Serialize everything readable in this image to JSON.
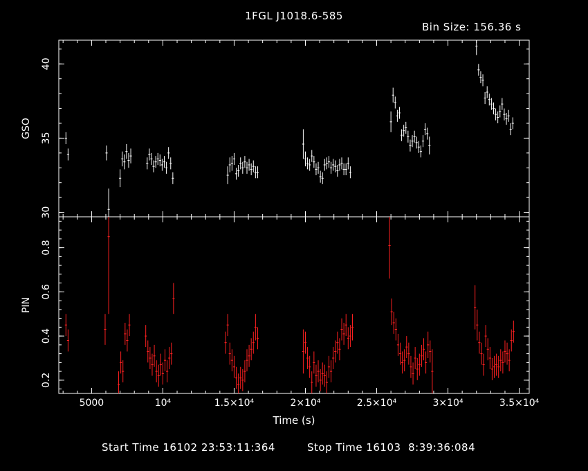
{
  "title": "1FGL J1018.6-585",
  "bin_size_label": "Bin Size: 156.36 s",
  "footer": {
    "start_label": "Start Time 16102 23:53:11:364",
    "stop_label": "Stop Time 16103  8:39:36:084"
  },
  "colors": {
    "background": "#000000",
    "gso": "#ffffff",
    "pin": "#ff2020",
    "axes": "#ffffff"
  },
  "chart_data": [
    {
      "type": "scatter",
      "panel": "top",
      "ylabel": "GSO",
      "xlabel": "",
      "xlim": [
        2700,
        35700
      ],
      "ylim": [
        29.7,
        41.6
      ],
      "yticks": [
        {
          "v": 30,
          "label": "30"
        },
        {
          "v": 35,
          "label": "35"
        },
        {
          "v": 40,
          "label": "40"
        }
      ],
      "series": [
        {
          "x": [
            3200,
            3350,
            6050,
            6200,
            7000,
            7150,
            7300,
            7450,
            7600,
            7750,
            8900,
            9050,
            9200,
            9350,
            9500,
            9650,
            9800,
            9950,
            10100,
            10250,
            10400,
            10550,
            10700,
            14550,
            14700,
            14850,
            15000,
            15150,
            15300,
            15450,
            15600,
            15750,
            15900,
            16050,
            16200,
            16350,
            16500,
            16650,
            19850,
            20000,
            20150,
            20300,
            20450,
            20600,
            20750,
            20900,
            21050,
            21200,
            21350,
            21500,
            21650,
            21800,
            21950,
            22100,
            22250,
            22400,
            22550,
            22700,
            22850,
            23000,
            23150,
            26000,
            26150,
            26300,
            26450,
            26600,
            26750,
            26900,
            27050,
            27200,
            27350,
            27500,
            27650,
            27800,
            27950,
            28100,
            28250,
            28400,
            28550,
            28700,
            32000,
            32150,
            32300,
            32450,
            32600,
            32750,
            32900,
            33050,
            33200,
            33350,
            33500,
            33650,
            33800,
            33950,
            34100,
            34250,
            34400,
            34550
          ],
          "y": [
            35.0,
            33.9,
            34.0,
            30.2,
            32.3,
            33.6,
            33.4,
            34.1,
            33.5,
            33.8,
            33.3,
            33.9,
            33.6,
            33.1,
            33.4,
            33.6,
            33.5,
            33.2,
            33.4,
            33.0,
            34.0,
            33.3,
            32.3,
            32.5,
            33.2,
            33.3,
            33.6,
            32.6,
            32.8,
            33.3,
            33.0,
            33.4,
            33.0,
            33.2,
            32.9,
            33.1,
            32.7,
            32.7,
            34.6,
            33.6,
            33.3,
            33.2,
            33.8,
            33.4,
            32.9,
            33.0,
            32.4,
            32.3,
            33.2,
            33.3,
            33.4,
            33.0,
            33.2,
            33.1,
            32.8,
            33.2,
            33.3,
            32.9,
            32.9,
            33.3,
            32.7,
            36.1,
            37.9,
            37.4,
            36.5,
            36.7,
            35.2,
            35.5,
            35.7,
            35.1,
            34.5,
            34.8,
            35.1,
            34.7,
            34.4,
            34.1,
            34.8,
            35.6,
            35.3,
            34.5,
            41.2,
            39.6,
            39.1,
            38.9,
            37.7,
            38.1,
            37.6,
            37.3,
            37.0,
            36.6,
            36.4,
            36.8,
            37.3,
            36.6,
            36.3,
            36.5,
            35.6,
            36.0
          ],
          "yerr": [
            0.4,
            0.4,
            0.5,
            1.4,
            0.6,
            0.5,
            0.5,
            0.5,
            0.5,
            0.5,
            0.4,
            0.4,
            0.4,
            0.4,
            0.4,
            0.4,
            0.4,
            0.4,
            0.4,
            0.4,
            0.4,
            0.4,
            0.4,
            0.6,
            0.5,
            0.5,
            0.4,
            0.4,
            0.4,
            0.4,
            0.4,
            0.4,
            0.4,
            0.4,
            0.4,
            0.4,
            0.4,
            0.4,
            1.0,
            0.5,
            0.4,
            0.4,
            0.4,
            0.4,
            0.4,
            0.4,
            0.4,
            0.4,
            0.4,
            0.4,
            0.4,
            0.4,
            0.4,
            0.4,
            0.4,
            0.4,
            0.4,
            0.4,
            0.4,
            0.4,
            0.4,
            0.7,
            0.5,
            0.4,
            0.4,
            0.4,
            0.4,
            0.4,
            0.4,
            0.4,
            0.4,
            0.4,
            0.4,
            0.4,
            0.4,
            0.4,
            0.4,
            0.4,
            0.4,
            0.6,
            0.6,
            0.4,
            0.4,
            0.4,
            0.4,
            0.4,
            0.4,
            0.4,
            0.4,
            0.4,
            0.4,
            0.4,
            0.4,
            0.4,
            0.4,
            0.4,
            0.4,
            0.4
          ]
        }
      ]
    },
    {
      "type": "scatter",
      "panel": "bottom",
      "ylabel": "PIN",
      "xlabel": "Time (s)",
      "xlim": [
        2700,
        35700
      ],
      "ylim": [
        0.14,
        0.94
      ],
      "yticks": [
        {
          "v": 0.2,
          "label": "0.2"
        },
        {
          "v": 0.4,
          "label": "0.4"
        },
        {
          "v": 0.6,
          "label": "0.6"
        },
        {
          "v": 0.8,
          "label": "0.8"
        }
      ],
      "xticks": [
        {
          "v": 5000,
          "label": "5000"
        },
        {
          "v": 10000,
          "label": "10⁴"
        },
        {
          "v": 15000,
          "label": "1.5×10⁴"
        },
        {
          "v": 20000,
          "label": "2×10⁴"
        },
        {
          "v": 25000,
          "label": "2.5×10⁴"
        },
        {
          "v": 30000,
          "label": "3×10⁴"
        },
        {
          "v": 35000,
          "label": "3.5×10⁴"
        }
      ],
      "series": [
        {
          "x": [
            3200,
            3350,
            5950,
            6200,
            6900,
            7050,
            7200,
            7350,
            7500,
            7650,
            8800,
            8950,
            9100,
            9250,
            9400,
            9550,
            9700,
            9850,
            10000,
            10150,
            10300,
            10450,
            10600,
            10750,
            14400,
            14550,
            14700,
            14850,
            15000,
            15150,
            15300,
            15450,
            15600,
            15750,
            15900,
            16050,
            16200,
            16350,
            16500,
            16650,
            19850,
            20000,
            20150,
            20300,
            20450,
            20600,
            20750,
            20900,
            21050,
            21200,
            21350,
            21500,
            21650,
            21800,
            21950,
            22100,
            22250,
            22400,
            22550,
            22700,
            22850,
            23000,
            23150,
            23300,
            25900,
            26050,
            26200,
            26350,
            26500,
            26650,
            26800,
            26950,
            27100,
            27250,
            27400,
            27550,
            27700,
            27850,
            28000,
            28150,
            28300,
            28450,
            28600,
            28750,
            28900,
            31900,
            32050,
            32200,
            32350,
            32500,
            32650,
            32800,
            32950,
            33100,
            33250,
            33400,
            33550,
            33700,
            33850,
            34000,
            34150,
            34300,
            34450,
            34600
          ],
          "y": [
            0.45,
            0.38,
            0.43,
            0.85,
            0.18,
            0.28,
            0.24,
            0.41,
            0.38,
            0.45,
            0.4,
            0.33,
            0.3,
            0.27,
            0.31,
            0.24,
            0.22,
            0.27,
            0.23,
            0.29,
            0.24,
            0.3,
            0.32,
            0.57,
            0.37,
            0.45,
            0.32,
            0.29,
            0.26,
            0.21,
            0.18,
            0.21,
            0.2,
            0.24,
            0.29,
            0.31,
            0.34,
            0.37,
            0.44,
            0.39,
            0.33,
            0.37,
            0.3,
            0.26,
            0.19,
            0.28,
            0.22,
            0.24,
            0.2,
            0.23,
            0.22,
            0.19,
            0.26,
            0.24,
            0.3,
            0.33,
            0.37,
            0.34,
            0.43,
            0.41,
            0.45,
            0.39,
            0.4,
            0.44,
            0.81,
            0.51,
            0.46,
            0.43,
            0.36,
            0.32,
            0.28,
            0.29,
            0.35,
            0.32,
            0.26,
            0.23,
            0.3,
            0.25,
            0.27,
            0.31,
            0.34,
            0.28,
            0.36,
            0.33,
            0.24,
            0.53,
            0.45,
            0.37,
            0.32,
            0.27,
            0.4,
            0.34,
            0.3,
            0.25,
            0.26,
            0.27,
            0.26,
            0.29,
            0.28,
            0.33,
            0.32,
            0.29,
            0.38,
            0.42
          ],
          "yerr": [
            0.05,
            0.05,
            0.07,
            0.35,
            0.06,
            0.05,
            0.05,
            0.05,
            0.05,
            0.05,
            0.05,
            0.05,
            0.05,
            0.05,
            0.05,
            0.05,
            0.05,
            0.05,
            0.05,
            0.05,
            0.05,
            0.05,
            0.05,
            0.07,
            0.05,
            0.05,
            0.05,
            0.05,
            0.05,
            0.05,
            0.05,
            0.05,
            0.05,
            0.05,
            0.05,
            0.05,
            0.05,
            0.05,
            0.06,
            0.05,
            0.1,
            0.05,
            0.05,
            0.05,
            0.05,
            0.05,
            0.05,
            0.05,
            0.05,
            0.05,
            0.05,
            0.05,
            0.05,
            0.05,
            0.05,
            0.05,
            0.05,
            0.05,
            0.05,
            0.05,
            0.05,
            0.05,
            0.05,
            0.06,
            0.15,
            0.06,
            0.05,
            0.05,
            0.05,
            0.05,
            0.05,
            0.05,
            0.05,
            0.05,
            0.05,
            0.05,
            0.05,
            0.05,
            0.05,
            0.05,
            0.05,
            0.05,
            0.06,
            0.05,
            0.1,
            0.1,
            0.07,
            0.05,
            0.05,
            0.05,
            0.05,
            0.05,
            0.05,
            0.05,
            0.05,
            0.05,
            0.05,
            0.05,
            0.05,
            0.05,
            0.05,
            0.05,
            0.05,
            0.05
          ],
          "xerr": 78
        }
      ]
    }
  ]
}
